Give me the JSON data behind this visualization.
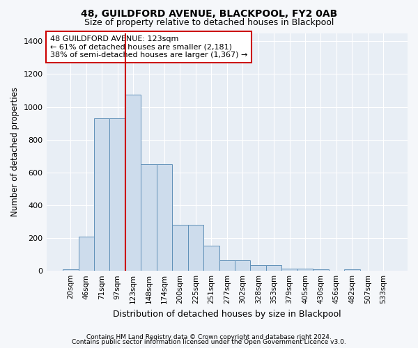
{
  "title1": "48, GUILDFORD AVENUE, BLACKPOOL, FY2 0AB",
  "title2": "Size of property relative to detached houses in Blackpool",
  "xlabel": "Distribution of detached houses by size in Blackpool",
  "ylabel": "Number of detached properties",
  "categories": [
    "20sqm",
    "46sqm",
    "71sqm",
    "97sqm",
    "123sqm",
    "148sqm",
    "174sqm",
    "200sqm",
    "225sqm",
    "251sqm",
    "277sqm",
    "302sqm",
    "328sqm",
    "353sqm",
    "379sqm",
    "405sqm",
    "430sqm",
    "456sqm",
    "482sqm",
    "507sqm",
    "533sqm"
  ],
  "values": [
    10,
    210,
    930,
    930,
    1075,
    650,
    650,
    280,
    280,
    155,
    65,
    65,
    35,
    35,
    15,
    15,
    10,
    0,
    10,
    0,
    0
  ],
  "bar_color": "#cddcec",
  "bar_edge_color": "#6090b8",
  "vline_x": 4.5,
  "vline_color": "#cc0000",
  "annotation_text": "48 GUILDFORD AVENUE: 123sqm\n← 61% of detached houses are smaller (2,181)\n38% of semi-detached houses are larger (1,367) →",
  "annotation_box_color": "#ffffff",
  "annotation_box_edge": "#cc0000",
  "ylim": [
    0,
    1450
  ],
  "yticks": [
    0,
    200,
    400,
    600,
    800,
    1000,
    1200,
    1400
  ],
  "footer1": "Contains HM Land Registry data © Crown copyright and database right 2024.",
  "footer2": "Contains public sector information licensed under the Open Government Licence v3.0.",
  "bg_color": "#f5f7fa",
  "plot_bg_color": "#e8eef5",
  "fig_width": 6.0,
  "fig_height": 5.0
}
